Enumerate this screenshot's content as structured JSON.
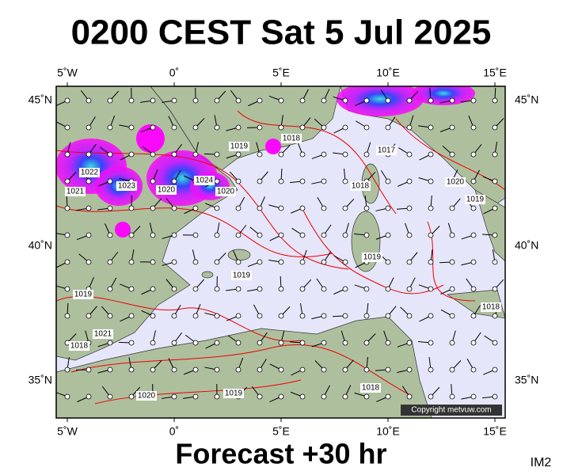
{
  "header": {
    "title": "0200 CEST Sat 5 Jul 2025"
  },
  "axes": {
    "lon_labels": [
      "5˚W",
      "0˚",
      "5˚E",
      "10˚E",
      "15˚E"
    ],
    "lat_labels": [
      "45˚N",
      "40˚N",
      "35˚N"
    ]
  },
  "isobar_labels": [
    "1022",
    "1021",
    "1023",
    "1020",
    "1024",
    "1020",
    "1019",
    "1018",
    "1017",
    "1018",
    "1019",
    "1019",
    "1021",
    "1019",
    "1018",
    "1020",
    "1019",
    "1018",
    "1020",
    "1019",
    "1018"
  ],
  "copyright": "Copyright metvuw.com",
  "footer": {
    "forecast": "Forecast +30 hr",
    "code": "IM2"
  }
}
